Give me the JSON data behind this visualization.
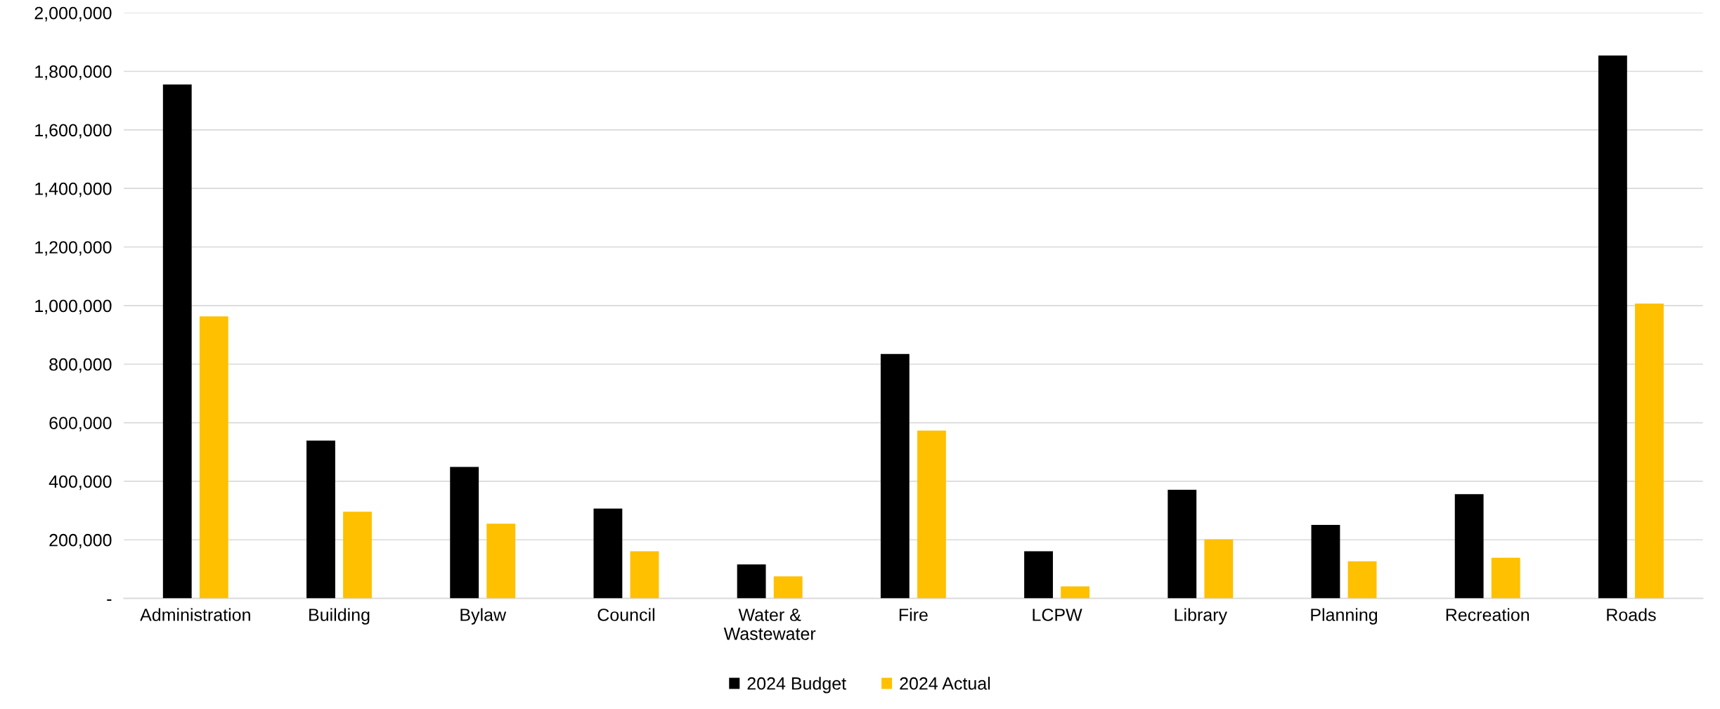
{
  "chart_data": {
    "type": "bar",
    "categories": [
      "Administration",
      "Building",
      "Bylaw",
      "Council",
      "Water &\nWastewater",
      "Fire",
      "LCPW",
      "Library",
      "Planning",
      "Recreation",
      "Roads"
    ],
    "series": [
      {
        "name": "2024 Budget",
        "color": "#000000",
        "values": [
          1755000,
          539000,
          449000,
          307000,
          116000,
          835000,
          161000,
          371000,
          251000,
          356000,
          1854000
        ]
      },
      {
        "name": "2024 Actual",
        "color": "#ffc000",
        "values": [
          963000,
          296000,
          255000,
          161000,
          75000,
          573000,
          41000,
          202000,
          127000,
          139000,
          1007000
        ]
      }
    ],
    "ylim": [
      0,
      2000000
    ],
    "yticks": [
      {
        "value": 0,
        "label": "-"
      },
      {
        "value": 200000,
        "label": "200,000"
      },
      {
        "value": 400000,
        "label": "400,000"
      },
      {
        "value": 600000,
        "label": "600,000"
      },
      {
        "value": 800000,
        "label": "800,000"
      },
      {
        "value": 1000000,
        "label": "1,000,000"
      },
      {
        "value": 1200000,
        "label": "1,200,000"
      },
      {
        "value": 1400000,
        "label": "1,400,000"
      },
      {
        "value": 1600000,
        "label": "1,600,000"
      },
      {
        "value": 1800000,
        "label": "1,800,000"
      },
      {
        "value": 2000000,
        "label": "2,000,000"
      }
    ],
    "grid": "y",
    "legend": "bottom"
  }
}
